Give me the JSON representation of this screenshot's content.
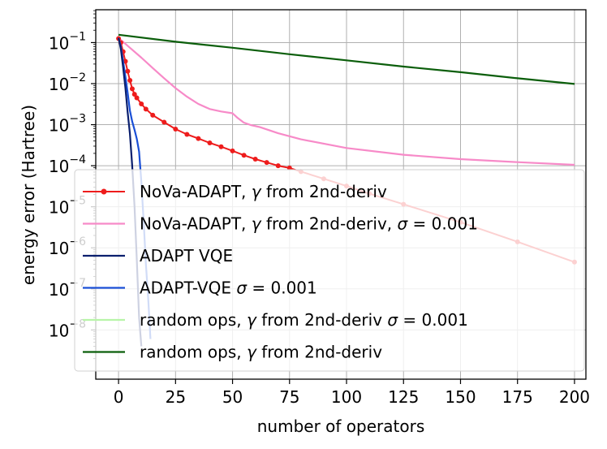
{
  "chart_data": {
    "type": "line",
    "title": "",
    "xlabel": "number of operators",
    "ylabel": "energy error (Hartree)",
    "xlim": [
      -10,
      205
    ],
    "ylim_log10": [
      -9.2,
      -0.2
    ],
    "yscale": "log",
    "grid": true,
    "legend_location": "lower-center",
    "x_ticks": [
      0,
      25,
      50,
      75,
      100,
      125,
      150,
      175,
      200
    ],
    "y_ticks": [
      {
        "exp": -1,
        "base": "10",
        "sup": "−1"
      },
      {
        "exp": -2,
        "base": "10",
        "sup": "−2"
      },
      {
        "exp": -3,
        "base": "10",
        "sup": "−3"
      },
      {
        "exp": -4,
        "base": "10",
        "sup": "−4"
      },
      {
        "exp": -5,
        "base": "10",
        "sup": "−5"
      },
      {
        "exp": -6,
        "base": "10",
        "sup": "−6"
      },
      {
        "exp": -7,
        "base": "10",
        "sup": "−7"
      },
      {
        "exp": -8,
        "base": "10",
        "sup": "−8"
      }
    ],
    "series": [
      {
        "name": "random ops, γ from 2nd-deriv",
        "legend": [
          "random ops, ",
          "γ",
          " from 2nd-deriv"
        ],
        "color": "#0b5e0b",
        "width": 2.2,
        "marker": false,
        "x": [
          0,
          25,
          50,
          75,
          100,
          125,
          150,
          175,
          200
        ],
        "y": [
          0.155,
          0.105,
          0.075,
          0.052,
          0.037,
          0.026,
          0.019,
          0.0135,
          0.0098
        ]
      },
      {
        "name": "random ops, γ from 2nd-deriv σ = 0.001",
        "legend": [
          "random ops, ",
          "γ",
          " from 2nd-deriv ",
          "σ",
          " = 0.001"
        ],
        "color": "#b8f5a8",
        "width": 2.2,
        "marker": false,
        "x": [],
        "y": []
      },
      {
        "name": "NoVa-ADAPT, γ from 2nd-deriv, σ = 0.001",
        "legend": [
          "NoVa-ADAPT, ",
          "γ",
          " from 2nd-deriv, ",
          "σ",
          " = 0.001"
        ],
        "color": "#f78ac8",
        "width": 2.2,
        "marker": false,
        "x": [
          0,
          5,
          10,
          15,
          20,
          25,
          30,
          35,
          40,
          45,
          50,
          52,
          55,
          58,
          62,
          70,
          80,
          100,
          125,
          150,
          175,
          200
        ],
        "y": [
          0.13,
          0.075,
          0.043,
          0.024,
          0.0135,
          0.0078,
          0.0048,
          0.0032,
          0.0024,
          0.0021,
          0.0019,
          0.0015,
          0.00112,
          0.00098,
          0.00087,
          0.00062,
          0.00044,
          0.00027,
          0.000185,
          0.000145,
          0.000122,
          0.000105
        ]
      },
      {
        "name": "NoVa-ADAPT, γ from 2nd-deriv",
        "legend": [
          "NoVa-ADAPT, ",
          "γ",
          " from 2nd-deriv"
        ],
        "color": "#ee1c1c",
        "width": 2.0,
        "marker": true,
        "x": [
          0,
          1,
          2,
          3,
          4,
          5,
          6,
          7,
          8,
          10,
          12,
          15,
          20,
          25,
          30,
          35,
          40,
          45,
          50,
          55,
          60,
          65,
          70,
          75,
          80,
          90,
          100,
          110,
          125,
          150,
          175,
          200
        ],
        "y": [
          0.125,
          0.1,
          0.06,
          0.035,
          0.02,
          0.012,
          0.0075,
          0.0055,
          0.0045,
          0.0032,
          0.0024,
          0.0017,
          0.00115,
          0.00078,
          0.00058,
          0.00046,
          0.00036,
          0.00029,
          0.00023,
          0.00018,
          0.000145,
          0.00012,
          0.0001,
          8.8e-05,
          7.2e-05,
          4.8e-05,
          3.2e-05,
          2.1e-05,
          1.15e-05,
          4.2e-06,
          1.4e-06,
          4.5e-07
        ]
      },
      {
        "name": "ADAPT-VQE σ = 0.001",
        "legend": [
          "ADAPT-VQE ",
          "σ",
          " = 0.001"
        ],
        "color": "#1a4fd6",
        "width": 2.2,
        "marker": false,
        "x": [
          0,
          1,
          2,
          3,
          4,
          5,
          6,
          7,
          8,
          9,
          10,
          11,
          12,
          13,
          14
        ],
        "y": [
          0.13,
          0.08,
          0.035,
          0.015,
          0.006,
          0.0022,
          0.0012,
          0.00075,
          0.00045,
          0.00022,
          4e-05,
          4.5e-06,
          4e-07,
          6e-08,
          6e-09
        ]
      },
      {
        "name": "ADAPT VQE",
        "legend": [
          "ADAPT VQE"
        ],
        "color": "#0a1f6e",
        "width": 2.2,
        "marker": false,
        "x": [
          0,
          1,
          2,
          3,
          4,
          5,
          6,
          7,
          8,
          9,
          10
        ],
        "y": [
          0.13,
          0.07,
          0.025,
          0.008,
          0.002,
          0.0006,
          0.0001,
          1e-05,
          5e-07,
          2e-08,
          4e-09
        ]
      }
    ]
  }
}
